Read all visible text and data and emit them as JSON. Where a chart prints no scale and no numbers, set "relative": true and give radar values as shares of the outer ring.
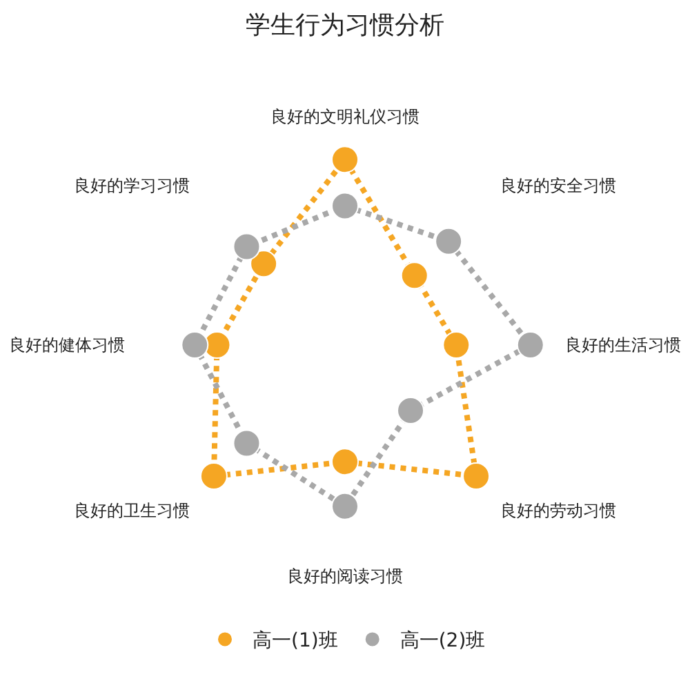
{
  "chart_data": {
    "type": "radar",
    "title": "学生行为习惯分析",
    "categories": [
      "良好的文明礼仪习惯",
      "良好的安全习惯",
      "良好的生活习惯",
      "良好的劳动习惯",
      "良好的阅读习惯",
      "良好的卫生习惯",
      "良好的健体习惯",
      "良好的学习习惯"
    ],
    "relative": true,
    "series": [
      {
        "name": "高一(1)班",
        "color": "#f5a623",
        "values": [
          1.0,
          0.53,
          0.6,
          1.0,
          0.63,
          1.0,
          0.69,
          0.62
        ]
      },
      {
        "name": "高一(2)班",
        "color": "#a8a8a8",
        "values": [
          0.75,
          0.79,
          1.0,
          0.5,
          0.87,
          0.75,
          0.81,
          0.75
        ]
      }
    ],
    "marker": "circle",
    "line_style": "dotted",
    "legend": "bottom",
    "grid": false
  }
}
